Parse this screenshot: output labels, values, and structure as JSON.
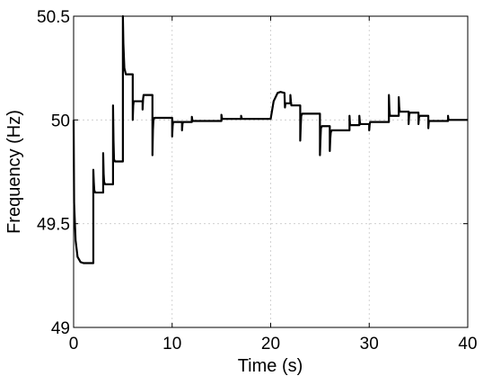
{
  "chart_data": {
    "type": "line",
    "title": "",
    "xlabel": "Time (s)",
    "ylabel": "Frequency (Hz)",
    "xlim": [
      0,
      40
    ],
    "ylim": [
      49,
      50.5
    ],
    "xticks": [
      0,
      10,
      20,
      30,
      40
    ],
    "xtick_labels": [
      "0",
      "10",
      "20",
      "30",
      "40"
    ],
    "yticks": [
      49,
      49.5,
      50,
      50.5
    ],
    "ytick_labels": [
      "49",
      "49.5",
      "50",
      "50.5"
    ],
    "grid": true,
    "legend": "none",
    "series": [
      {
        "color": "#000000",
        "x": [
          0,
          0.05,
          0.2,
          0.4,
          0.7,
          1.0,
          1.5,
          2.0,
          2.0,
          2.05,
          2.1,
          2.2,
          2.2,
          3.0,
          3.0,
          3.05,
          3.1,
          3.2,
          3.2,
          4.0,
          4.0,
          4.05,
          4.1,
          4.2,
          4.2,
          5.0,
          5.0,
          5.05,
          5.15,
          5.3,
          5.3,
          6.0,
          6.0,
          6.05,
          6.1,
          6.2,
          6.2,
          7.0,
          7.0,
          7.05,
          7.1,
          7.2,
          7.2,
          8.0,
          8.0,
          8.05,
          8.1,
          8.2,
          8.2,
          10.0,
          10.0,
          10.05,
          10.1,
          10.2,
          10.2,
          11.0,
          11.0,
          11.05,
          11.1,
          11.2,
          11.2,
          12.0,
          12.0,
          12.05,
          12.1,
          12.2,
          12.2,
          15.0,
          15.0,
          15.05,
          15.1,
          15.2,
          15.2,
          17.0,
          17.0,
          17.05,
          17.1,
          17.2,
          17.2,
          20.0,
          20.3,
          20.7,
          21.0,
          21.4,
          21.4,
          21.45,
          21.5,
          21.6,
          21.6,
          22.0,
          22.0,
          22.05,
          22.1,
          22.2,
          22.2,
          23.0,
          23.0,
          23.05,
          23.1,
          23.2,
          23.2,
          25.0,
          25.0,
          25.05,
          25.1,
          25.2,
          25.2,
          26.0,
          26.0,
          26.05,
          26.1,
          26.2,
          26.2,
          28.0,
          28.0,
          28.05,
          28.1,
          28.2,
          28.2,
          29.0,
          29.0,
          29.05,
          29.1,
          29.2,
          29.2,
          30.0,
          30.0,
          30.05,
          30.1,
          30.2,
          30.2,
          32.0,
          32.0,
          32.05,
          32.1,
          32.2,
          32.2,
          33.0,
          33.0,
          33.05,
          33.1,
          33.2,
          33.2,
          34.0,
          34.0,
          34.05,
          34.1,
          34.2,
          34.2,
          35.0,
          35.0,
          35.05,
          35.1,
          35.2,
          35.2,
          36.0,
          36.0,
          36.05,
          36.1,
          36.2,
          36.2,
          38.0,
          38.0,
          38.05,
          38.1,
          38.2,
          38.2,
          40.0
        ],
        "y": [
          50.0,
          49.6,
          49.42,
          49.34,
          49.315,
          49.31,
          49.31,
          49.31,
          49.76,
          49.7,
          49.66,
          49.65,
          49.65,
          49.65,
          49.84,
          49.74,
          49.7,
          49.69,
          49.69,
          49.69,
          50.07,
          49.9,
          49.81,
          49.8,
          49.8,
          49.8,
          50.5,
          50.37,
          50.25,
          50.22,
          50.22,
          50.22,
          50.0,
          50.07,
          50.09,
          50.09,
          50.09,
          50.09,
          50.05,
          50.1,
          50.12,
          50.12,
          50.12,
          50.12,
          49.83,
          49.95,
          50.0,
          50.01,
          50.01,
          50.01,
          49.92,
          49.97,
          49.99,
          49.99,
          49.99,
          49.99,
          49.95,
          49.98,
          49.99,
          49.99,
          49.99,
          49.99,
          50.015,
          50.0,
          49.995,
          49.995,
          49.995,
          49.995,
          50.025,
          50.01,
          50.005,
          50.005,
          50.005,
          50.005,
          50.02,
          50.01,
          50.005,
          50.005,
          50.005,
          50.005,
          50.09,
          50.13,
          50.135,
          50.13,
          50.13,
          50.06,
          50.08,
          50.08,
          50.08,
          50.08,
          50.12,
          50.09,
          50.07,
          50.07,
          50.07,
          50.07,
          49.9,
          49.97,
          50.02,
          50.03,
          50.03,
          50.03,
          49.83,
          49.9,
          49.96,
          49.97,
          49.97,
          49.97,
          49.85,
          49.91,
          49.94,
          49.95,
          49.95,
          49.95,
          50.02,
          49.98,
          49.975,
          49.975,
          49.975,
          49.975,
          50.02,
          49.99,
          49.98,
          49.98,
          49.98,
          49.98,
          49.95,
          49.98,
          49.99,
          49.99,
          49.99,
          49.99,
          50.12,
          50.05,
          50.02,
          50.02,
          50.02,
          50.02,
          50.11,
          50.06,
          50.04,
          50.04,
          50.04,
          50.04,
          49.98,
          50.02,
          50.035,
          50.035,
          50.035,
          50.035,
          49.98,
          50.01,
          50.02,
          50.02,
          50.02,
          50.02,
          49.96,
          49.99,
          49.995,
          49.995,
          49.995,
          49.995,
          50.02,
          50.0,
          50.0,
          50.0,
          50.0,
          50.0
        ]
      }
    ]
  }
}
